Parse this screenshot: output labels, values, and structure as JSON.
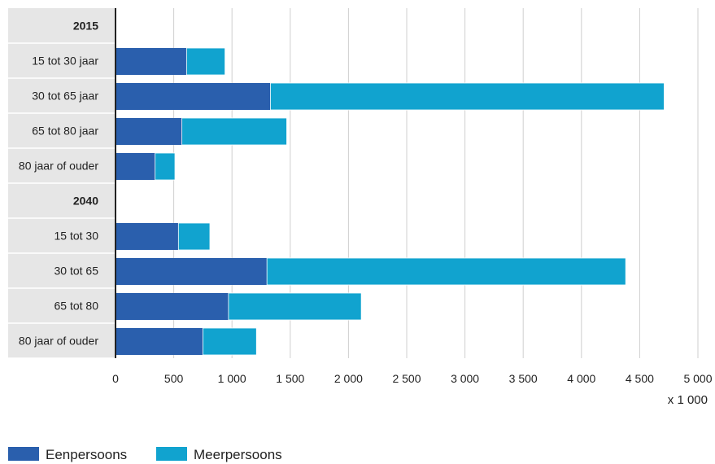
{
  "chart_data": {
    "type": "bar",
    "orientation": "horizontal",
    "stacked": true,
    "categories": [
      {
        "label": "2015",
        "header": true
      },
      {
        "label": "15 tot 30 jaar",
        "header": false
      },
      {
        "label": "30 tot 65 jaar",
        "header": false
      },
      {
        "label": "65 tot 80 jaar",
        "header": false
      },
      {
        "label": "80 jaar of ouder",
        "header": false
      },
      {
        "label": "2040",
        "header": true
      },
      {
        "label": "15 tot 30",
        "header": false
      },
      {
        "label": "30 tot 65",
        "header": false
      },
      {
        "label": "65 tot 80",
        "header": false
      },
      {
        "label": "80 jaar of ouder",
        "header": false
      }
    ],
    "series": [
      {
        "name": "Eenpersoons",
        "color": "#2a5fad",
        "values": [
          null,
          610,
          1330,
          570,
          340,
          null,
          540,
          1300,
          970,
          750
        ]
      },
      {
        "name": "Meerpersoons",
        "color": "#11a3cf",
        "values": [
          null,
          330,
          3380,
          900,
          170,
          null,
          270,
          3080,
          1140,
          460
        ]
      }
    ],
    "xlim": [
      0,
      5000
    ],
    "xticks": [
      0,
      500,
      1000,
      1500,
      2000,
      2500,
      3000,
      3500,
      4000,
      4500,
      5000
    ],
    "xtick_labels": [
      "0",
      "500",
      "1 000",
      "1 500",
      "2 000",
      "2 500",
      "3 000",
      "3 500",
      "4 000",
      "4 500",
      "5 000"
    ],
    "xunit": "x 1 000",
    "title": "",
    "grid": true,
    "legend_position": "bottom-left"
  }
}
